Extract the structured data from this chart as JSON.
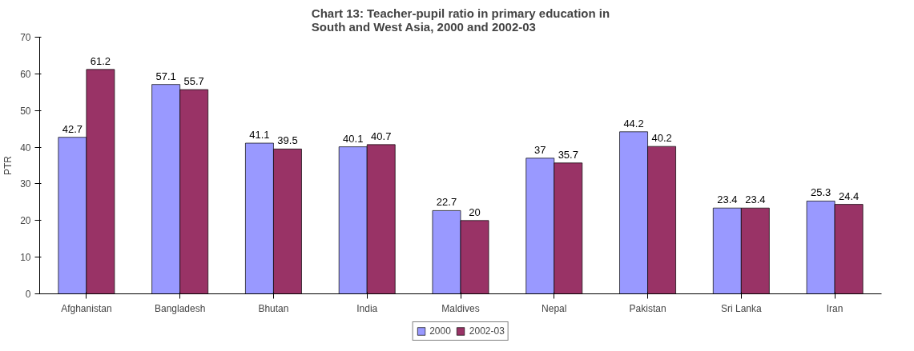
{
  "chart_data": {
    "type": "bar",
    "title": "Chart 13: Teacher-pupil ratio in primary education in South and West Asia, 2000 and 2002-03",
    "ylabel": "PTR",
    "categories": [
      "Afghanistan",
      "Bangladesh",
      "Bhutan",
      "India",
      "Maldives",
      "Nepal",
      "Pakistan",
      "Sri Lanka",
      "Iran"
    ],
    "series": [
      {
        "name": "2000",
        "color": "#9999ff",
        "values": [
          42.7,
          57.1,
          41.1,
          40.1,
          22.7,
          37,
          44.2,
          23.4,
          25.3
        ]
      },
      {
        "name": "2002-03",
        "color": "#993366",
        "values": [
          61.2,
          55.7,
          39.5,
          40.7,
          20,
          35.7,
          40.2,
          23.4,
          24.4
        ]
      }
    ],
    "ylim": [
      0,
      70
    ],
    "yticks": [
      0,
      10,
      20,
      30,
      40,
      50,
      60,
      70
    ],
    "data_labels": true,
    "legend": "bottom",
    "grid": false
  }
}
